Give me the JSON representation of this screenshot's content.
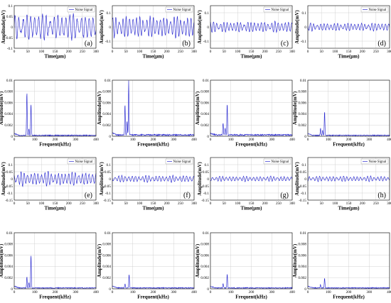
{
  "colors": {
    "signal": "#2b2bd0",
    "grid": "#c8c8c8",
    "axis": "#000000"
  },
  "chart_data": [
    {
      "type": "line",
      "panel_label": "(a)",
      "xlabel": "Time(μm)",
      "ylabel": "Amplitude(mV)",
      "legend": "Noise Signal",
      "xlim": [
        0,
        300
      ],
      "ylim": [
        -0.1,
        0.1
      ],
      "xticks": [
        0,
        50,
        100,
        150,
        200,
        250,
        300
      ],
      "yticks": [
        -0.1,
        -0.05,
        0,
        0.05,
        0.1
      ],
      "xtick_labels": [
        "0",
        "50",
        "100",
        "150",
        "200",
        "250",
        "300"
      ],
      "ytick_labels": [
        "-0.1",
        "-0.05",
        "0",
        "0.05",
        "0.1"
      ],
      "grid": true,
      "series": [
        {
          "waveform": "noise-time",
          "amplitude": 0.065,
          "cycles": 21
        }
      ]
    },
    {
      "type": "line",
      "panel_label": "(b)",
      "xlabel": "Time(μm)",
      "ylabel": "Amplitude(mV)",
      "legend": "Noise Signal",
      "xlim": [
        0,
        300
      ],
      "ylim": [
        -0.15,
        0.15
      ],
      "xticks": [
        0,
        50,
        100,
        150,
        200,
        250,
        300
      ],
      "yticks": [
        -0.1,
        0,
        0.1
      ],
      "xtick_labels": [
        "0",
        "50",
        "100",
        "150",
        "200",
        "250",
        "300"
      ],
      "ytick_labels": [
        "-0.1",
        "0",
        "0.1"
      ],
      "grid": true,
      "series": [
        {
          "waveform": "noise-time",
          "amplitude": 0.08,
          "cycles": 24
        }
      ]
    },
    {
      "type": "line",
      "panel_label": "(c)",
      "xlabel": "Time(μm)",
      "ylabel": "Amplitude(mV)",
      "legend": "Noise Signal",
      "xlim": [
        0,
        300
      ],
      "ylim": [
        -0.15,
        0.15
      ],
      "xticks": [
        0,
        50,
        100,
        150,
        200,
        250,
        300
      ],
      "yticks": [
        -0.1,
        0,
        0.1
      ],
      "xtick_labels": [
        "0",
        "50",
        "100",
        "150",
        "200",
        "250",
        "300"
      ],
      "ytick_labels": [
        "-0.1",
        "0",
        "0.1"
      ],
      "grid": true,
      "series": [
        {
          "waveform": "noise-time",
          "amplitude": 0.04,
          "cycles": 24
        }
      ]
    },
    {
      "type": "line",
      "panel_label": "(d)",
      "xlabel": "Time(μm)",
      "ylabel": "Amplitude(mV)",
      "legend": "Noise Signal",
      "xlim": [
        0,
        300
      ],
      "ylim": [
        -0.15,
        0.15
      ],
      "xticks": [
        0,
        50,
        100,
        150,
        200,
        250,
        300
      ],
      "yticks": [
        -0.1,
        0,
        0.1
      ],
      "xtick_labels": [
        "0",
        "50",
        "100",
        "150",
        "200",
        "250",
        "300"
      ],
      "ytick_labels": [
        "-0.1",
        "0",
        "0.1"
      ],
      "grid": true,
      "series": [
        {
          "waveform": "noise-time",
          "amplitude": 0.03,
          "cycles": 24
        }
      ]
    },
    {
      "type": "line",
      "panel_label": "",
      "xlabel": "Frequent(kHz)",
      "ylabel": "Amplitude(mV)",
      "legend": "",
      "xlim": [
        0,
        400
      ],
      "ylim": [
        0,
        0.01
      ],
      "xticks": [
        0,
        100,
        200,
        300,
        400
      ],
      "yticks": [
        0,
        0.002,
        0.004,
        0.006,
        0.008,
        0.01
      ],
      "xtick_labels": [
        "0",
        "100",
        "200",
        "300",
        "400"
      ],
      "ytick_labels": [
        "0",
        "0.002",
        "0.004",
        "0.006",
        "0.008",
        "0.01"
      ],
      "grid": true,
      "series": [
        {
          "peaks": [
            {
              "x": 62,
              "y": 0.0078
            },
            {
              "x": 82,
              "y": 0.0058
            },
            {
              "x": 72,
              "y": 0.0012
            }
          ],
          "floor": 0.0002
        }
      ]
    },
    {
      "type": "line",
      "panel_label": "",
      "xlabel": "Frequent(kHz)",
      "ylabel": "Amplitude(mV)",
      "legend": "",
      "xlim": [
        0,
        400
      ],
      "ylim": [
        0,
        0.01
      ],
      "xticks": [
        0,
        100,
        200,
        300,
        400
      ],
      "yticks": [
        0,
        0.002,
        0.004,
        0.006,
        0.008,
        0.01
      ],
      "xtick_labels": [
        "0",
        "100",
        "200",
        "300",
        "400"
      ],
      "ytick_labels": [
        "0",
        "0.002",
        "0.004",
        "0.006",
        "0.008",
        "0.01"
      ],
      "grid": true,
      "series": [
        {
          "peaks": [
            {
              "x": 62,
              "y": 0.0055
            },
            {
              "x": 80,
              "y": 0.0096
            },
            {
              "x": 72,
              "y": 0.0025
            }
          ],
          "floor": 0.0003
        }
      ]
    },
    {
      "type": "line",
      "panel_label": "",
      "xlabel": "Frequent(kHz)",
      "ylabel": "Amplitude(mV)",
      "legend": "",
      "xlim": [
        0,
        400
      ],
      "ylim": [
        0,
        0.01
      ],
      "xticks": [
        0,
        100,
        200,
        300,
        400
      ],
      "yticks": [
        0,
        0.002,
        0.004,
        0.006,
        0.008,
        0.01
      ],
      "xtick_labels": [
        "0",
        "100",
        "200",
        "300",
        "400"
      ],
      "ytick_labels": [
        "0",
        "0.002",
        "0.004",
        "0.006",
        "0.008",
        "0.01"
      ],
      "grid": true,
      "series": [
        {
          "peaks": [
            {
              "x": 62,
              "y": 0.0022
            },
            {
              "x": 82,
              "y": 0.0057
            },
            {
              "x": 72,
              "y": 0.0012
            }
          ],
          "floor": 0.0003
        }
      ]
    },
    {
      "type": "line",
      "panel_label": "",
      "xlabel": "Frequent(kHz)",
      "ylabel": "Amplitude(mV)",
      "legend": "",
      "xlim": [
        0,
        400
      ],
      "ylim": [
        0,
        0.01
      ],
      "xticks": [
        0,
        100,
        200,
        300,
        400
      ],
      "yticks": [
        0,
        0.002,
        0.004,
        0.006,
        0.008,
        0.01
      ],
      "xtick_labels": [
        "0",
        "100",
        "200",
        "300",
        "400"
      ],
      "ytick_labels": [
        "0",
        "0.002",
        "0.004",
        "0.006",
        "0.008",
        "0.01"
      ],
      "grid": true,
      "series": [
        {
          "peaks": [
            {
              "x": 62,
              "y": 0.0013
            },
            {
              "x": 82,
              "y": 0.0043
            },
            {
              "x": 72,
              "y": 0.0009
            }
          ],
          "floor": 0.0002
        }
      ]
    },
    {
      "type": "line",
      "panel_label": "(e)",
      "xlabel": "Time(μm)",
      "ylabel": "Amplitude(mV)",
      "legend": "Noise Signal",
      "xlim": [
        0,
        300
      ],
      "ylim": [
        -0.15,
        0.15
      ],
      "xticks": [
        0,
        50,
        100,
        150,
        200,
        250,
        300
      ],
      "yticks": [
        -0.15,
        -0.1,
        -0.05,
        0,
        0.05,
        0.1
      ],
      "xtick_labels": [
        "0",
        "50",
        "100",
        "150",
        "200",
        "250",
        "300"
      ],
      "ytick_labels": [
        "-0.15",
        "-0.1",
        "-0.05",
        "0",
        "0.05",
        "0.1"
      ],
      "grid": true,
      "series": [
        {
          "waveform": "noise-time",
          "amplitude": 0.05,
          "cycles": 24
        }
      ]
    },
    {
      "type": "line",
      "panel_label": "(f)",
      "xlabel": "Time(μm)",
      "ylabel": "Amplitude(mV)",
      "legend": "Noise Signal",
      "xlim": [
        0,
        300
      ],
      "ylim": [
        -0.15,
        0.15
      ],
      "xticks": [
        0,
        50,
        100,
        150,
        200,
        250,
        300
      ],
      "yticks": [
        -0.15,
        -0.1,
        -0.05,
        0,
        0.05,
        0.1
      ],
      "xtick_labels": [
        "0",
        "50",
        "100",
        "150",
        "200",
        "250",
        "300"
      ],
      "ytick_labels": [
        "-0.15",
        "-0.1",
        "-0.05",
        "0",
        "0.05",
        "0.1"
      ],
      "grid": true,
      "series": [
        {
          "waveform": "noise-time",
          "amplitude": 0.025,
          "cycles": 24
        }
      ]
    },
    {
      "type": "line",
      "panel_label": "(g)",
      "xlabel": "Time(μm)",
      "ylabel": "Amplitude(mV)",
      "legend": "Noise Signal",
      "xlim": [
        0,
        300
      ],
      "ylim": [
        -0.15,
        0.15
      ],
      "xticks": [
        0,
        50,
        100,
        150,
        200,
        250,
        300
      ],
      "yticks": [
        -0.15,
        -0.1,
        -0.05,
        0,
        0.05,
        0.1
      ],
      "xtick_labels": [
        "0",
        "50",
        "100",
        "150",
        "200",
        "250",
        "300"
      ],
      "ytick_labels": [
        "-0.15",
        "-0.1",
        "-0.05",
        "0",
        "0.05",
        "0.1"
      ],
      "grid": true,
      "series": [
        {
          "waveform": "noise-time",
          "amplitude": 0.02,
          "cycles": 24
        }
      ]
    },
    {
      "type": "line",
      "panel_label": "(h)",
      "xlabel": "Time(μm)",
      "ylabel": "Amplitude(mV)",
      "legend": "Noise Signal",
      "xlim": [
        0,
        300
      ],
      "ylim": [
        -0.15,
        0.15
      ],
      "xticks": [
        0,
        50,
        100,
        150,
        200,
        250,
        300
      ],
      "yticks": [
        -0.15,
        -0.1,
        -0.05,
        0,
        0.05,
        0.1
      ],
      "xtick_labels": [
        "0",
        "50",
        "100",
        "150",
        "200",
        "250",
        "300"
      ],
      "ytick_labels": [
        "-0.15",
        "-0.1",
        "-0.05",
        "0",
        "0.05",
        "0.1"
      ],
      "grid": true,
      "series": [
        {
          "waveform": "noise-time",
          "amplitude": 0.02,
          "cycles": 24
        }
      ]
    },
    {
      "type": "line",
      "panel_label": "",
      "xlabel": "Frequent(kHz)",
      "ylabel": "Amplitude(mV)",
      "legend": "",
      "xlim": [
        0,
        400
      ],
      "ylim": [
        0,
        0.01
      ],
      "xticks": [
        0,
        100,
        200,
        300,
        400
      ],
      "yticks": [
        0,
        0.002,
        0.004,
        0.006,
        0.008,
        0.01
      ],
      "xtick_labels": [
        "0",
        "100",
        "200",
        "300",
        "400"
      ],
      "ytick_labels": [
        "0",
        "0.002",
        "0.004",
        "0.006",
        "0.008",
        "0.01"
      ],
      "grid": true,
      "series": [
        {
          "peaks": [
            {
              "x": 62,
              "y": 0.0021
            },
            {
              "x": 82,
              "y": 0.006
            },
            {
              "x": 72,
              "y": 0.001
            }
          ],
          "floor": 0.0002
        }
      ]
    },
    {
      "type": "line",
      "panel_label": "",
      "xlabel": "Frequent(kHz)",
      "ylabel": "Amplitude(mV)",
      "legend": "",
      "xlim": [
        0,
        400
      ],
      "ylim": [
        0,
        0.01
      ],
      "xticks": [
        0,
        100,
        200,
        300,
        400
      ],
      "yticks": [
        0,
        0.002,
        0.004,
        0.006,
        0.008,
        0.01
      ],
      "xtick_labels": [
        "0",
        "100",
        "200",
        "300",
        "400"
      ],
      "ytick_labels": [
        "0",
        "0.002",
        "0.004",
        "0.006",
        "0.008",
        "0.01"
      ],
      "grid": true,
      "series": [
        {
          "peaks": [
            {
              "x": 82,
              "y": 0.0025
            },
            {
              "x": 62,
              "y": 0.0007
            }
          ],
          "floor": 0.0002
        }
      ]
    },
    {
      "type": "line",
      "panel_label": "",
      "xlabel": "Frequent(kHz)",
      "ylabel": "Amplitude(mV)",
      "legend": "",
      "xlim": [
        0,
        400
      ],
      "ylim": [
        0,
        0.01
      ],
      "xticks": [
        0,
        100,
        200,
        300,
        400
      ],
      "yticks": [
        0,
        0.002,
        0.004,
        0.006,
        0.008,
        0.01
      ],
      "xtick_labels": [
        "0",
        "100",
        "200",
        "300",
        "400"
      ],
      "ytick_labels": [
        "0",
        "0.002",
        "0.004",
        "0.006",
        "0.008",
        "0.01"
      ],
      "grid": true,
      "series": [
        {
          "peaks": [
            {
              "x": 82,
              "y": 0.0025
            },
            {
              "x": 62,
              "y": 0.0008
            }
          ],
          "floor": 0.0002
        }
      ]
    },
    {
      "type": "line",
      "panel_label": "",
      "xlabel": "Frequent(kHz)",
      "ylabel": "Amplitude(mV)",
      "legend": "",
      "xlim": [
        0,
        400
      ],
      "ylim": [
        0,
        0.01
      ],
      "xticks": [
        0,
        100,
        200,
        300,
        400
      ],
      "yticks": [
        0,
        0.002,
        0.004,
        0.006,
        0.008,
        0.01
      ],
      "xtick_labels": [
        "0",
        "100",
        "200",
        "300",
        "400"
      ],
      "ytick_labels": [
        "0",
        "0.002",
        "0.004",
        "0.006",
        "0.008",
        "0.01"
      ],
      "grid": true,
      "series": [
        {
          "peaks": [
            {
              "x": 82,
              "y": 0.0018
            },
            {
              "x": 62,
              "y": 0.0006
            }
          ],
          "floor": 0.0002
        }
      ]
    }
  ]
}
